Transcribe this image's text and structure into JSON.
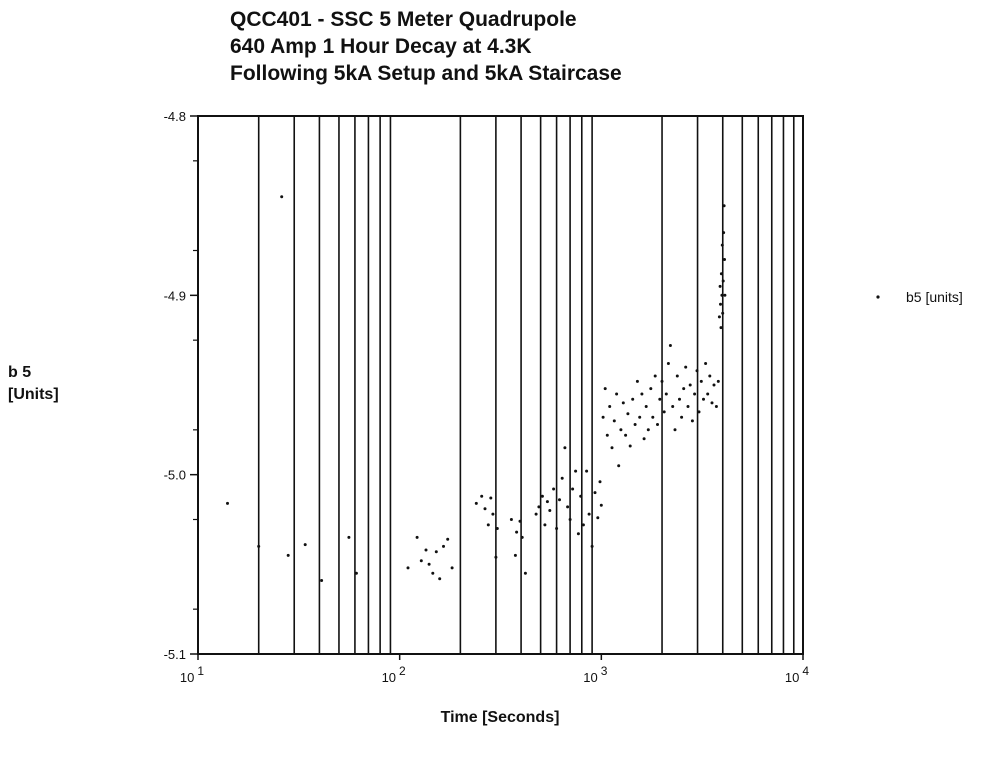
{
  "chart_data": {
    "type": "scatter",
    "title_lines": [
      "QCC401 - SSC 5 Meter Quadrupole",
      "640 Amp 1 Hour Decay at 4.3K",
      "Following 5kA Setup and 5kA Staircase"
    ],
    "xlabel": "Time [Seconds]",
    "ylabel_lines": [
      "b 5",
      "[Units]"
    ],
    "x_scale": "log",
    "xlim": [
      10,
      10000
    ],
    "ylim": [
      -5.1,
      -4.8
    ],
    "x_tick_labels": [
      {
        "value": 10,
        "base": "10",
        "exp": "1"
      },
      {
        "value": 100,
        "base": "10",
        "exp": "2"
      },
      {
        "value": 1000,
        "base": "10",
        "exp": "3"
      },
      {
        "value": 10000,
        "base": "10",
        "exp": "4"
      }
    ],
    "y_ticks": [
      -4.8,
      -4.9,
      -5.0,
      -5.1
    ],
    "y_tick_labels": [
      "-4.8",
      "-4.9",
      "-5.0",
      "-5.1"
    ],
    "grid": "vertical log grid lines",
    "legend": {
      "placement": "right",
      "label": "b5 [units]"
    },
    "series": [
      {
        "name": "b5 [units]",
        "points": [
          [
            14,
            -5.016
          ],
          [
            20,
            -5.04
          ],
          [
            26,
            -4.845
          ],
          [
            28,
            -5.045
          ],
          [
            34,
            -5.039
          ],
          [
            41,
            -5.059
          ],
          [
            56,
            -5.035
          ],
          [
            61,
            -5.055
          ],
          [
            110,
            -5.052
          ],
          [
            122,
            -5.035
          ],
          [
            128,
            -5.048
          ],
          [
            135,
            -5.042
          ],
          [
            140,
            -5.05
          ],
          [
            146,
            -5.055
          ],
          [
            152,
            -5.043
          ],
          [
            158,
            -5.058
          ],
          [
            165,
            -5.04
          ],
          [
            173,
            -5.036
          ],
          [
            182,
            -5.052
          ],
          [
            240,
            -5.016
          ],
          [
            255,
            -5.012
          ],
          [
            265,
            -5.019
          ],
          [
            275,
            -5.028
          ],
          [
            283,
            -5.013
          ],
          [
            290,
            -5.022
          ],
          [
            300,
            -5.046
          ],
          [
            305,
            -5.03
          ],
          [
            358,
            -5.025
          ],
          [
            375,
            -5.045
          ],
          [
            380,
            -5.032
          ],
          [
            395,
            -5.026
          ],
          [
            405,
            -5.035
          ],
          [
            420,
            -5.055
          ],
          [
            475,
            -5.022
          ],
          [
            490,
            -5.018
          ],
          [
            510,
            -5.012
          ],
          [
            525,
            -5.028
          ],
          [
            540,
            -5.015
          ],
          [
            555,
            -5.02
          ],
          [
            580,
            -5.008
          ],
          [
            600,
            -5.03
          ],
          [
            620,
            -5.014
          ],
          [
            640,
            -5.002
          ],
          [
            660,
            -4.985
          ],
          [
            680,
            -5.018
          ],
          [
            700,
            -5.025
          ],
          [
            720,
            -5.008
          ],
          [
            745,
            -4.998
          ],
          [
            770,
            -5.033
          ],
          [
            790,
            -5.012
          ],
          [
            815,
            -5.028
          ],
          [
            845,
            -4.998
          ],
          [
            870,
            -5.022
          ],
          [
            900,
            -5.04
          ],
          [
            930,
            -5.01
          ],
          [
            960,
            -5.024
          ],
          [
            985,
            -5.004
          ],
          [
            1000,
            -5.017
          ],
          [
            1020,
            -4.968
          ],
          [
            1045,
            -4.952
          ],
          [
            1070,
            -4.978
          ],
          [
            1100,
            -4.962
          ],
          [
            1130,
            -4.985
          ],
          [
            1160,
            -4.97
          ],
          [
            1190,
            -4.955
          ],
          [
            1220,
            -4.995
          ],
          [
            1250,
            -4.975
          ],
          [
            1285,
            -4.96
          ],
          [
            1320,
            -4.978
          ],
          [
            1355,
            -4.966
          ],
          [
            1390,
            -4.984
          ],
          [
            1430,
            -4.958
          ],
          [
            1470,
            -4.972
          ],
          [
            1510,
            -4.948
          ],
          [
            1550,
            -4.968
          ],
          [
            1590,
            -4.955
          ],
          [
            1630,
            -4.98
          ],
          [
            1670,
            -4.962
          ],
          [
            1710,
            -4.975
          ],
          [
            1760,
            -4.952
          ],
          [
            1800,
            -4.968
          ],
          [
            1850,
            -4.945
          ],
          [
            1900,
            -4.972
          ],
          [
            1950,
            -4.958
          ],
          [
            2000,
            -4.948
          ],
          [
            2050,
            -4.965
          ],
          [
            2100,
            -4.955
          ],
          [
            2150,
            -4.938
          ],
          [
            2200,
            -4.928
          ],
          [
            2260,
            -4.962
          ],
          [
            2320,
            -4.975
          ],
          [
            2380,
            -4.945
          ],
          [
            2440,
            -4.958
          ],
          [
            2500,
            -4.968
          ],
          [
            2560,
            -4.952
          ],
          [
            2620,
            -4.94
          ],
          [
            2690,
            -4.962
          ],
          [
            2760,
            -4.95
          ],
          [
            2830,
            -4.97
          ],
          [
            2900,
            -4.955
          ],
          [
            2980,
            -4.942
          ],
          [
            3050,
            -4.965
          ],
          [
            3130,
            -4.948
          ],
          [
            3210,
            -4.958
          ],
          [
            3290,
            -4.938
          ],
          [
            3370,
            -4.955
          ],
          [
            3450,
            -4.945
          ],
          [
            3540,
            -4.96
          ],
          [
            3620,
            -4.95
          ],
          [
            3720,
            -4.962
          ],
          [
            3800,
            -4.948
          ],
          [
            3850,
            -4.912
          ],
          [
            3880,
            -4.895
          ],
          [
            3900,
            -4.905
          ],
          [
            3920,
            -4.918
          ],
          [
            3940,
            -4.888
          ],
          [
            3960,
            -4.9
          ],
          [
            3980,
            -4.872
          ],
          [
            4000,
            -4.91
          ],
          [
            4020,
            -4.892
          ],
          [
            4040,
            -4.865
          ],
          [
            4060,
            -4.85
          ],
          [
            4080,
            -4.88
          ],
          [
            4100,
            -4.9
          ]
        ]
      }
    ]
  }
}
